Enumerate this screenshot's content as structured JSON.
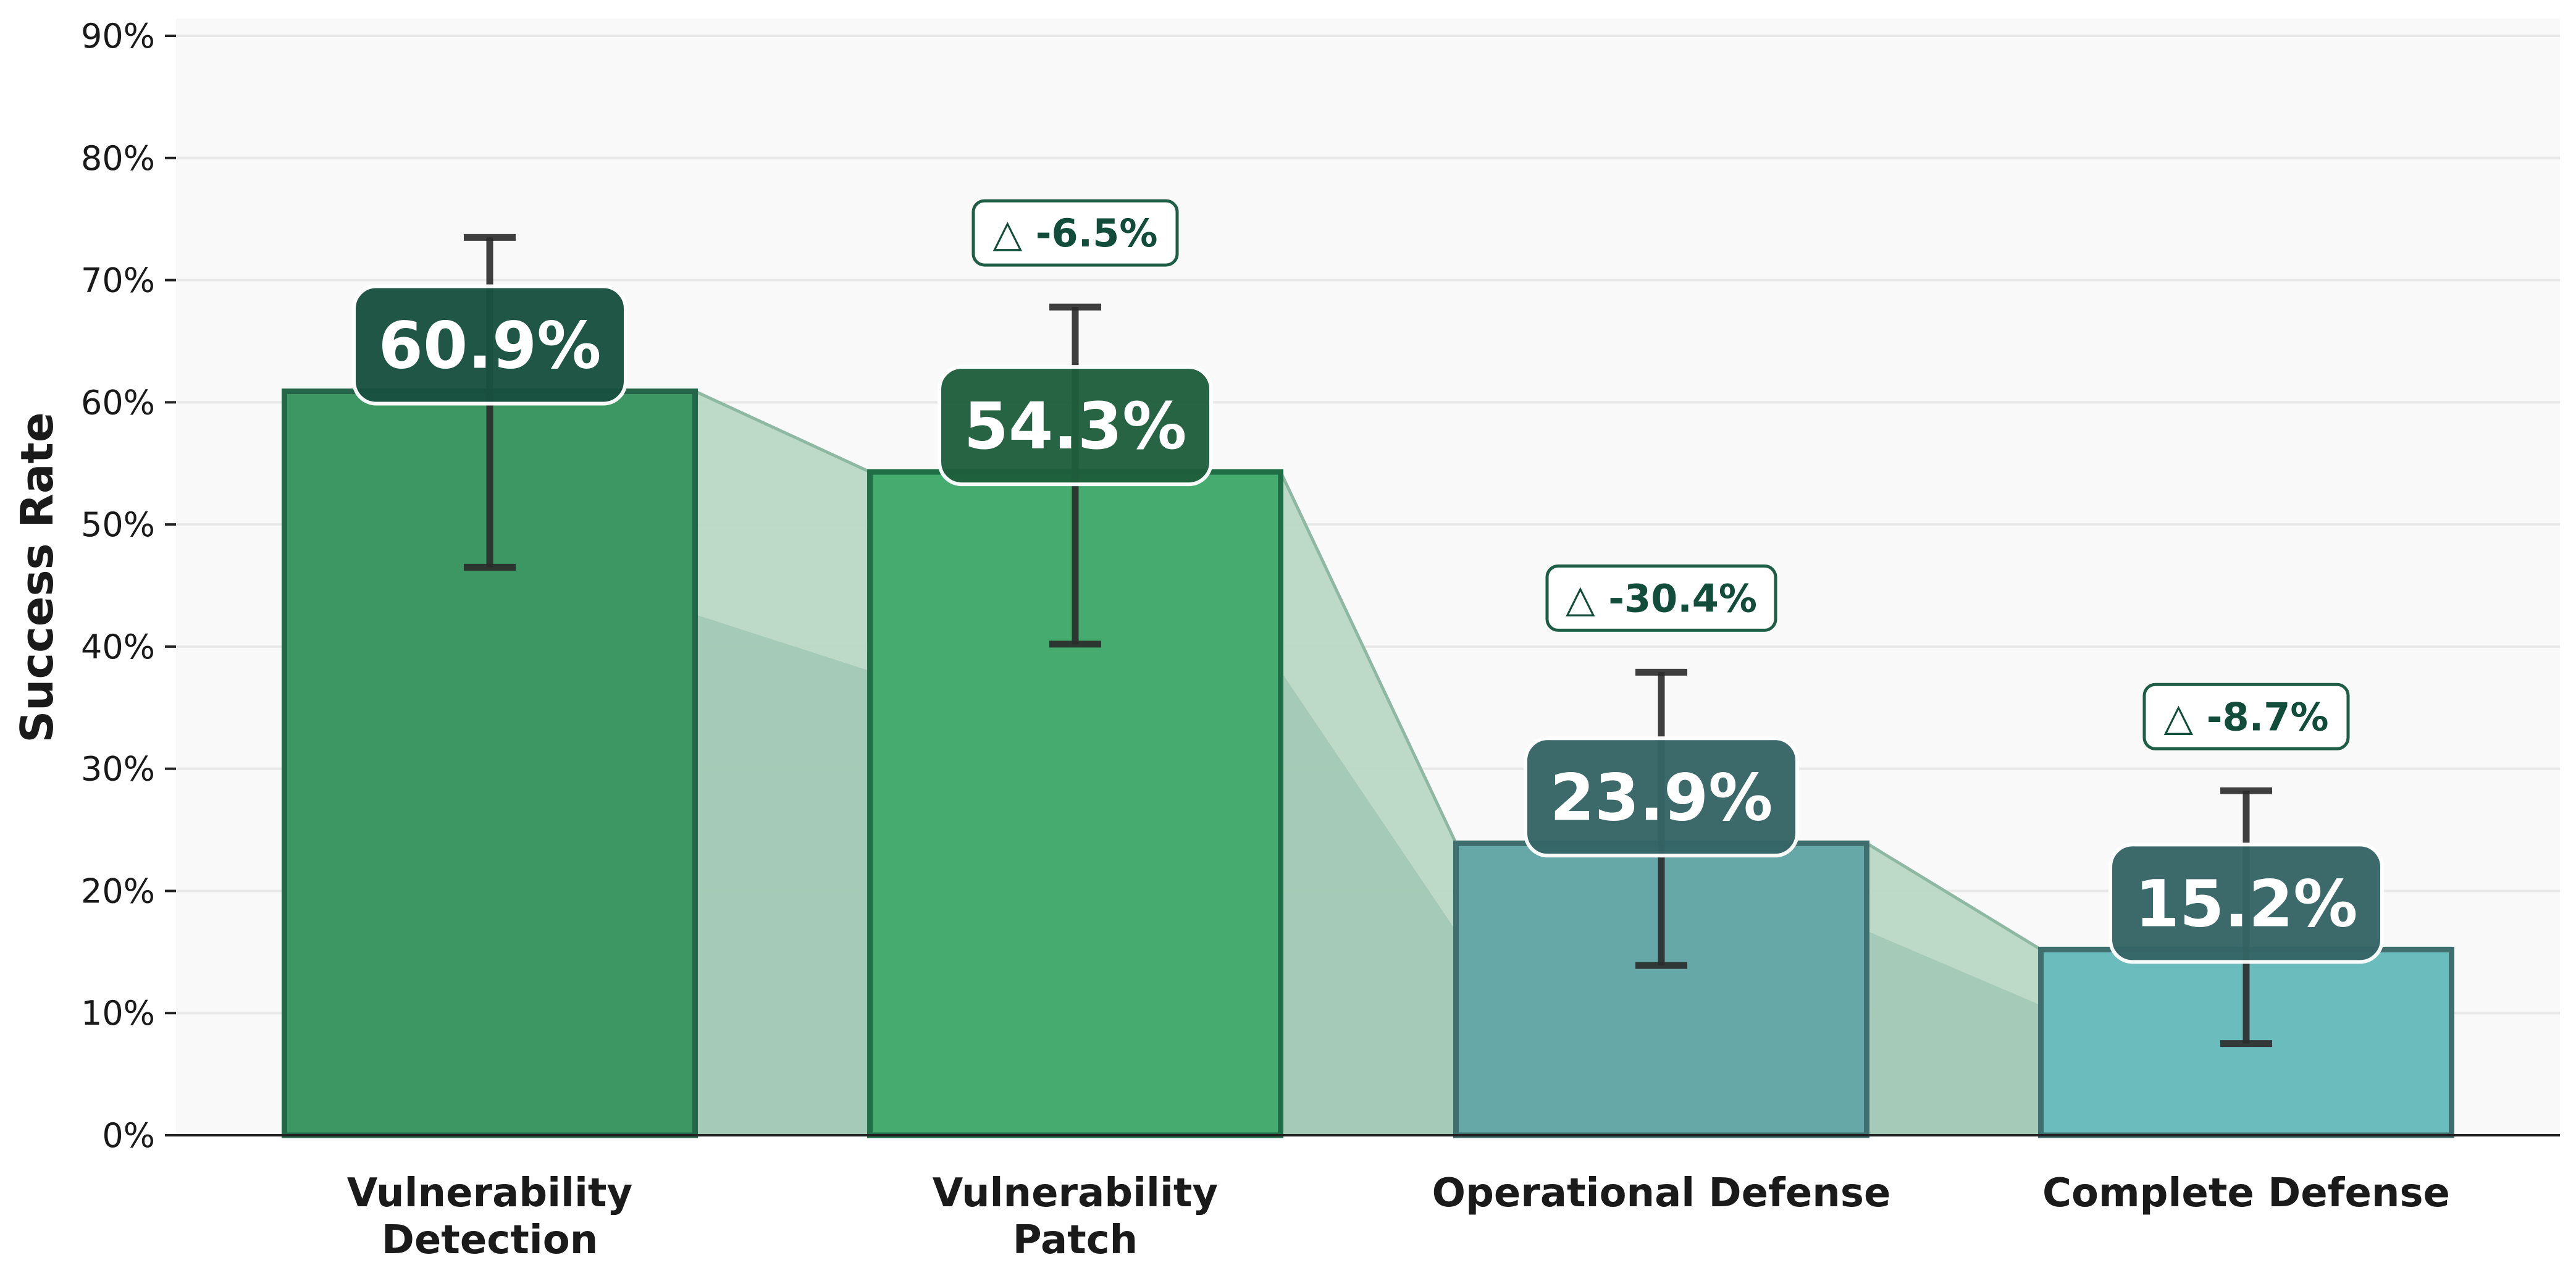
{
  "chart_data": {
    "type": "bar",
    "title": "",
    "xlabel": "",
    "ylabel": "Success Rate",
    "ylim": [
      0,
      90
    ],
    "yticks": [
      0,
      10,
      20,
      30,
      40,
      50,
      60,
      70,
      80,
      90
    ],
    "ytick_labels": [
      "0%",
      "10%",
      "20%",
      "30%",
      "40%",
      "50%",
      "60%",
      "70%",
      "80%",
      "90%"
    ],
    "grid": true,
    "categories": [
      [
        "Vulnerability",
        "Detection"
      ],
      [
        "Vulnerability",
        "Patch"
      ],
      [
        "Operational Defense"
      ],
      [
        "Complete Defense"
      ]
    ],
    "values": [
      60.9,
      54.3,
      23.9,
      15.2
    ],
    "value_labels": [
      "60.9%",
      "54.3%",
      "23.9%",
      "15.2%"
    ],
    "error_low": [
      46.5,
      40.2,
      13.9,
      7.5
    ],
    "error_high": [
      73.5,
      67.8,
      37.9,
      28.2
    ],
    "deltas": [
      null,
      "△ -6.5%",
      "△ -30.4%",
      "△ -8.7%"
    ],
    "colors": {
      "bars": [
        "#3d9762",
        "#45ab6f",
        "#66a8a8",
        "#6bbdbd"
      ],
      "bar_edges": [
        "#23664a",
        "#1f6e45",
        "#3f6e6e",
        "#3f6e6e"
      ],
      "value_box": [
        "#18503f",
        "#1e5e3c",
        "#356566",
        "#356566"
      ],
      "delta_text": "#114d3a",
      "connector_light": "#b9d8c6",
      "connector_dark": "#9dc4b0",
      "grid": "#e8e8e8",
      "plot_bg": "#f9f9f9"
    }
  }
}
